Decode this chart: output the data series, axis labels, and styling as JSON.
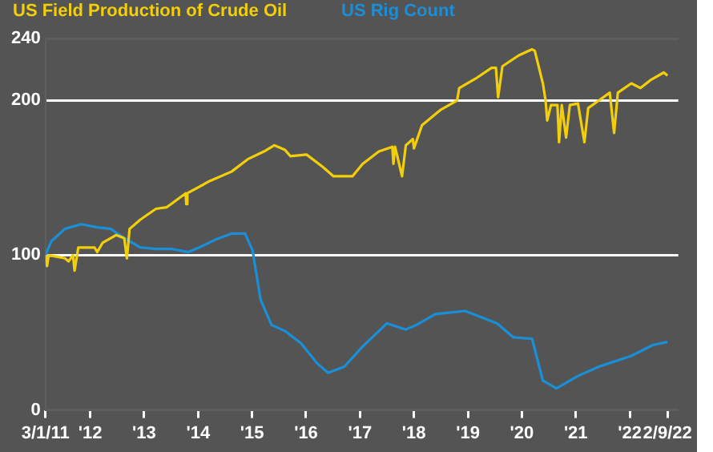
{
  "chart_data": {
    "type": "line",
    "legend": "top left",
    "grid": "y",
    "marker": "none",
    "line_style": "solid",
    "xlim": [
      2011.17,
      2022.9
    ],
    "xticks": [
      {
        "value": 2011.17,
        "label": "3/1/11"
      },
      {
        "value": 2012,
        "label": "'12"
      },
      {
        "value": 2013,
        "label": "'13"
      },
      {
        "value": 2014,
        "label": "'14"
      },
      {
        "value": 2015,
        "label": "'15"
      },
      {
        "value": 2016,
        "label": "'16"
      },
      {
        "value": 2017,
        "label": "'17"
      },
      {
        "value": 2018,
        "label": "'18"
      },
      {
        "value": 2019,
        "label": "'19"
      },
      {
        "value": 2020,
        "label": "'20"
      },
      {
        "value": 2021,
        "label": "'21"
      },
      {
        "value": 2022,
        "label": "'22"
      },
      {
        "value": 2022.7,
        "label": "2/9/22"
      }
    ],
    "ylim": [
      0,
      240
    ],
    "yticks": [
      0,
      100,
      200,
      240
    ],
    "series": [
      {
        "name": "US Field Production of Crude Oil",
        "color": "#f2cf0a",
        "x": [
          2011.17,
          2011.2,
          2011.23,
          2011.53,
          2011.6,
          2011.68,
          2011.71,
          2011.78,
          2012.08,
          2012.13,
          2012.23,
          2012.48,
          2012.63,
          2012.68,
          2012.73,
          2012.93,
          2013.22,
          2013.42,
          2013.77,
          2013.78,
          2013.8,
          2014.22,
          2014.62,
          2014.92,
          2015.22,
          2015.41,
          2015.61,
          2015.71,
          2016.01,
          2016.31,
          2016.51,
          2016.86,
          2017.05,
          2017.35,
          2017.6,
          2017.62,
          2017.65,
          2017.78,
          2017.85,
          2017.98,
          2018.0,
          2018.15,
          2018.5,
          2018.8,
          2018.84,
          2019.14,
          2019.44,
          2019.52,
          2019.56,
          2019.64,
          2019.94,
          2020.19,
          2020.24,
          2020.39,
          2020.44,
          2020.47,
          2020.54,
          2020.66,
          2020.69,
          2020.74,
          2020.82,
          2020.89,
          2021.04,
          2021.16,
          2021.23,
          2021.43,
          2021.63,
          2021.71,
          2021.78,
          2022.03,
          2022.2,
          2022.38,
          2022.63,
          2022.7
        ],
        "values": [
          100,
          93,
          100,
          98,
          96,
          100,
          90,
          105,
          105,
          102,
          108,
          113,
          111,
          98,
          117,
          123,
          130,
          131,
          140,
          133,
          140,
          148,
          154,
          162,
          167,
          171,
          168,
          164,
          165,
          157,
          151,
          151,
          159,
          167,
          170,
          159,
          170,
          151,
          171,
          175,
          169,
          184,
          194,
          200,
          208,
          214,
          221,
          221,
          202,
          222,
          229,
          233,
          232,
          211,
          200,
          187,
          197,
          197,
          173,
          197,
          176,
          197,
          198,
          173,
          195,
          200,
          205,
          179,
          205,
          211,
          208,
          213,
          218,
          216
        ]
      },
      {
        "name": "US Rig Count",
        "color": "#1a8fd8",
        "x": [
          2011.17,
          2011.28,
          2011.53,
          2011.83,
          2012.13,
          2012.38,
          2012.63,
          2012.93,
          2013.22,
          2013.52,
          2013.82,
          2014.02,
          2014.32,
          2014.62,
          2014.87,
          2015.01,
          2015.16,
          2015.36,
          2015.61,
          2015.91,
          2016.21,
          2016.41,
          2016.71,
          2017.05,
          2017.5,
          2017.85,
          2018.05,
          2018.4,
          2018.95,
          2019.54,
          2019.84,
          2020.19,
          2020.39,
          2020.64,
          2021.04,
          2021.43,
          2022.03,
          2022.43,
          2022.7
        ],
        "values": [
          100,
          109,
          117,
          120,
          118,
          117,
          111,
          105,
          104,
          104,
          102,
          105,
          110,
          114,
          114,
          103,
          71,
          55,
          51,
          43,
          30,
          24,
          28,
          41,
          56,
          52,
          55,
          62,
          64,
          56,
          47,
          46,
          19,
          14,
          22,
          28,
          35,
          42,
          44
        ]
      }
    ]
  }
}
